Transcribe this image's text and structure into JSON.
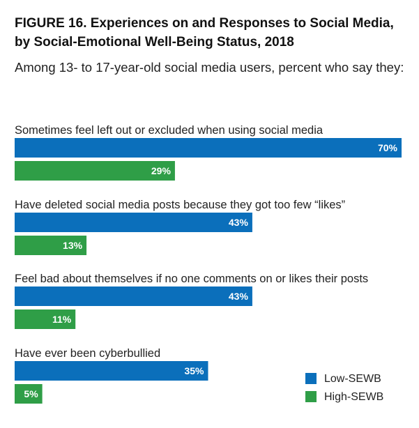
{
  "title_line1": "FIGURE 16. Experiences on and Responses to Social Media,",
  "title_line2": "by Social-Emotional Well-Being Status, 2018",
  "subtitle": "Among 13- to 17-year-old social media users, percent who say they:",
  "chart_data": {
    "type": "bar",
    "orientation": "horizontal",
    "categories": [
      "Sometimes feel left out or excluded when using social media",
      "Have deleted social media posts because they got too few “likes”",
      "Feel bad about themselves if no one comments on or likes their posts",
      "Have ever been cyberbullied"
    ],
    "series": [
      {
        "name": "Low-SEWB",
        "values": [
          70,
          43,
          43,
          35
        ],
        "labels": [
          "70%",
          "43%",
          "43%",
          "35%"
        ],
        "color": "#0b6fbb"
      },
      {
        "name": "High-SEWB",
        "values": [
          29,
          13,
          11,
          5
        ],
        "labels": [
          "29%",
          "13%",
          "11%",
          "5%"
        ],
        "color": "#2f9e47"
      }
    ],
    "xlim": [
      0,
      70
    ],
    "legend_position": "bottom-right",
    "grid": false
  }
}
